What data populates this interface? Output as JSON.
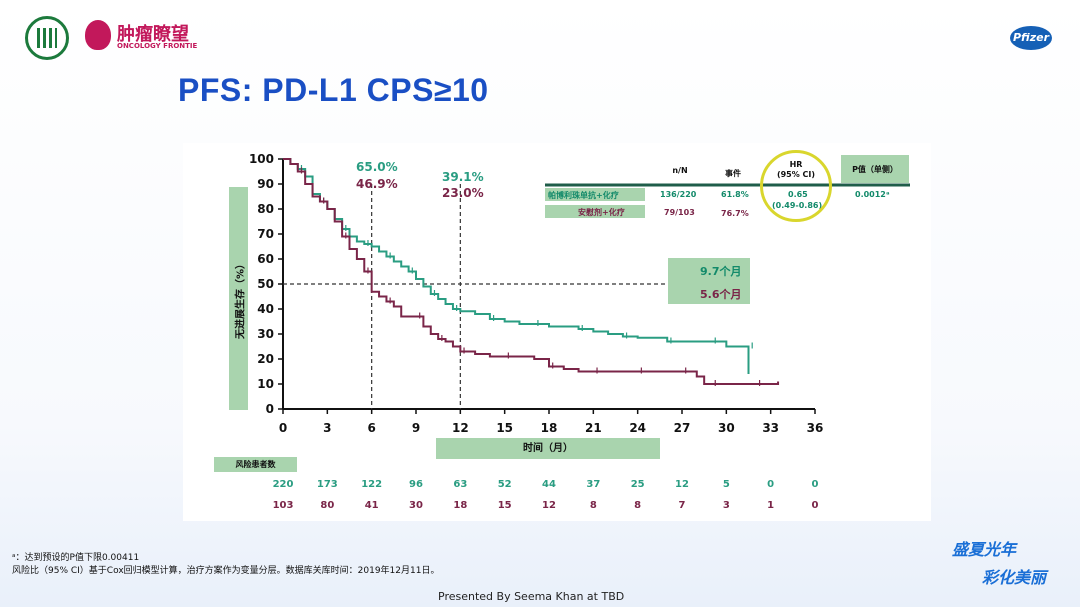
{
  "header": {
    "logo_cn": "肿瘤瞭望",
    "logo_en": "ONCOLOGY FRONTIE",
    "pfizer_label": "Pfizer"
  },
  "title": "PFS:  PD-L1 CPS≥10",
  "annotations": {
    "rate6_teal": "65.0%",
    "rate6_maroon": "46.9%",
    "rate12_teal": "39.1%",
    "rate12_maroon": "23.0%",
    "median_teal": "9.7个月",
    "median_maroon": "5.6个月"
  },
  "table": {
    "col_nN": "n/N",
    "col_events": "事件",
    "col_hr_line1": "HR",
    "col_hr_line2": "(95% CI)",
    "col_p": "P值（单侧）",
    "rows": [
      {
        "arm": "帕博利珠单抗+化疗",
        "nN": "136/220",
        "events": "61.8%"
      },
      {
        "arm": "安慰剂+化疗",
        "nN": "79/103",
        "events": "76.7%"
      }
    ],
    "hr": "0.65",
    "ci": "(0.49-0.86)",
    "p": "0.0012ᵃ"
  },
  "chart_data": {
    "type": "line",
    "title": "PFS: PD-L1 CPS≥10",
    "xlabel": "时间（月）",
    "ylabel": "无进展生存（%）",
    "xlim": [
      0,
      36
    ],
    "ylim": [
      0,
      100
    ],
    "xticks": [
      0,
      3,
      6,
      9,
      12,
      15,
      18,
      21,
      24,
      27,
      30,
      33,
      36
    ],
    "yticks": [
      0,
      10,
      20,
      30,
      40,
      50,
      60,
      70,
      80,
      90,
      100
    ],
    "reference_lines": {
      "x": [
        6,
        12
      ],
      "y": [
        50
      ]
    },
    "series": [
      {
        "name": "帕博利珠单抗+化疗",
        "color": "#2a9d82",
        "x": [
          0,
          0.5,
          1,
          1.5,
          2,
          2.5,
          3,
          3.5,
          4,
          4.5,
          5,
          5.5,
          6,
          6.5,
          7,
          7.5,
          8,
          8.5,
          9,
          9.5,
          10,
          10.5,
          11,
          11.5,
          12,
          13,
          14,
          15,
          16,
          17,
          18,
          19,
          20,
          21,
          22,
          23,
          24,
          25,
          26,
          27,
          28,
          29,
          30,
          31,
          31.5,
          31.5
        ],
        "y": [
          100,
          98,
          96,
          93,
          86,
          83,
          80,
          76,
          72,
          69,
          67,
          66,
          65,
          63,
          61,
          59,
          57,
          55,
          52,
          49,
          46,
          44,
          42,
          40,
          39.1,
          38,
          36,
          35,
          34,
          34,
          33,
          33,
          32,
          31,
          30,
          29,
          28.5,
          28.5,
          27,
          27,
          27,
          27,
          25,
          25,
          25,
          14
        ]
      },
      {
        "name": "安慰剂+化疗",
        "color": "#7a2548",
        "x": [
          0,
          0.5,
          1,
          1.5,
          2,
          2.5,
          3,
          3.5,
          4,
          4.5,
          5,
          5.5,
          6,
          6.5,
          7,
          7.5,
          8,
          9,
          9.5,
          10,
          10.5,
          11,
          11.5,
          12,
          13,
          14,
          15,
          16,
          17,
          18,
          19,
          20,
          21,
          22,
          23,
          24,
          25,
          26,
          27,
          28,
          28.5,
          29,
          30,
          31,
          32,
          33,
          33.5,
          33.5
        ],
        "y": [
          100,
          98,
          95,
          90,
          85,
          83,
          80,
          75,
          69,
          64,
          60,
          55,
          46.9,
          45,
          43,
          41,
          37,
          37,
          33,
          30,
          28,
          27,
          25,
          23,
          22,
          21,
          21,
          21,
          20,
          17,
          16,
          15,
          15,
          15,
          15,
          15,
          15,
          15,
          15,
          13,
          10,
          10,
          10,
          10,
          10,
          10,
          10,
          11
        ]
      }
    ],
    "risk_table": {
      "label": "风险患者数",
      "times": [
        0,
        3,
        6,
        9,
        12,
        15,
        18,
        21,
        24,
        27,
        30,
        33,
        36
      ],
      "arm1": [
        220,
        173,
        122,
        96,
        63,
        52,
        44,
        37,
        25,
        12,
        5,
        0,
        0
      ],
      "arm2": [
        103,
        80,
        41,
        30,
        18,
        15,
        12,
        8,
        8,
        7,
        3,
        1,
        0
      ]
    }
  },
  "footnotes": {
    "line1": "ᵃ：达到预设的P值下限0.00411",
    "line2": "风险比（95% CI）基于Cox回归模型计算，治疗方案作为变量分层。数据库关库时间：2019年12月11日。"
  },
  "presented": "Presented By Seema Khan at TBD",
  "event_logo": {
    "line1": "盛夏光年",
    "line2": "彩化美丽"
  }
}
